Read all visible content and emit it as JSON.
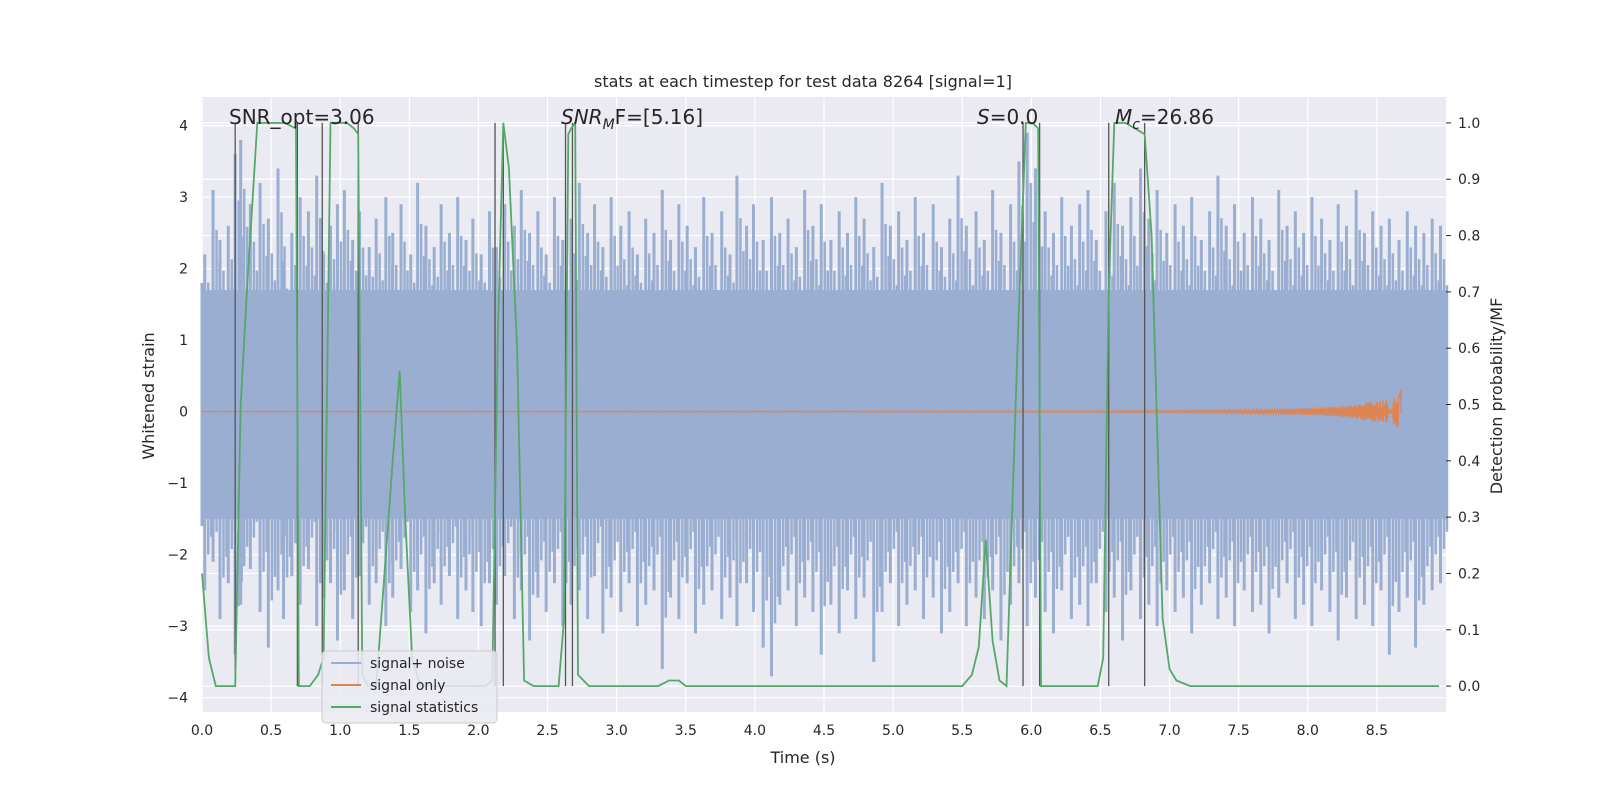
{
  "chart_data": {
    "type": "line",
    "title": "stats at each timestep for test data 8264 [signal=1]",
    "xlabel": "Time (s)",
    "ylabel_left": "Whitened strain",
    "ylabel_right": "Detection probability/MF",
    "xlim": [
      0.0,
      9.0
    ],
    "ylim_left": [
      -4.2,
      4.4
    ],
    "ylim_right": [
      -0.046,
      1.046
    ],
    "x_ticks": [
      0.0,
      0.5,
      1.0,
      1.5,
      2.0,
      2.5,
      3.0,
      3.5,
      4.0,
      4.5,
      5.0,
      5.5,
      6.0,
      6.5,
      7.0,
      7.5,
      8.0,
      8.5
    ],
    "x_tick_labels": [
      "0.0",
      "0.5",
      "1.0",
      "1.5",
      "2.0",
      "2.5",
      "3.0",
      "3.5",
      "4.0",
      "4.5",
      "5.0",
      "5.5",
      "6.0",
      "6.5",
      "7.0",
      "7.5",
      "8.0",
      "8.5"
    ],
    "y_left_ticks": [
      4,
      3,
      2,
      1,
      0,
      -1,
      -2,
      -3,
      -4
    ],
    "y_left_tick_labels": [
      "4",
      "3",
      "2",
      "1",
      "0",
      "−1",
      "−2",
      "−3",
      "−4"
    ],
    "y_right_ticks": [
      1.0,
      0.9,
      0.8,
      0.7,
      0.6,
      0.5,
      0.4,
      0.3,
      0.2,
      0.1,
      0.0
    ],
    "y_right_tick_labels": [
      "1.0",
      "0.9",
      "0.8",
      "0.7",
      "0.6",
      "0.5",
      "0.4",
      "0.3",
      "0.2",
      "0.1",
      "0.0"
    ],
    "annotations": {
      "snr_opt": "SNR_opt=3.06",
      "snr_mf_main": "SNR",
      "snr_mf_sub": "M",
      "snr_mf_rest": "F=[5.16]",
      "s_main": "S",
      "s_rest": "=0.0",
      "mc_main": "M",
      "mc_sub": "c",
      "mc_rest": "=26.86"
    },
    "legend": {
      "placement": "lower-left",
      "entries": [
        "signal+ noise",
        "signal only",
        "signal statistics"
      ]
    },
    "colors": {
      "noise": "#9aaed1",
      "signal": "#dd8452",
      "stats": "#55a868",
      "vlines": "#555555",
      "background": "#eaeaf2",
      "grid": "#ffffff"
    },
    "series": [
      {
        "name": "signal statistics",
        "axis": "right",
        "x": [
          0.0,
          0.05,
          0.1,
          0.2,
          0.24,
          0.28,
          0.32,
          0.4,
          0.5,
          0.6,
          0.68,
          0.7,
          0.73,
          0.78,
          0.84,
          0.88,
          0.93,
          0.97,
          1.05,
          1.1,
          1.13,
          1.16,
          1.2,
          1.26,
          1.32,
          1.38,
          1.43,
          1.47,
          1.52,
          1.58,
          1.65,
          1.75,
          1.85,
          1.95,
          2.05,
          2.1,
          2.14,
          2.18,
          2.22,
          2.28,
          2.33,
          2.4,
          2.5,
          2.58,
          2.62,
          2.65,
          2.67,
          2.7,
          2.72,
          2.8,
          2.9,
          3.0,
          3.1,
          3.2,
          3.3,
          3.38,
          3.45,
          3.5,
          3.6,
          4.0,
          4.5,
          5.0,
          5.5,
          5.57,
          5.62,
          5.67,
          5.72,
          5.77,
          5.82,
          5.9,
          5.96,
          6.01,
          6.05,
          6.07,
          6.1,
          6.2,
          6.4,
          6.48,
          6.52,
          6.56,
          6.6,
          6.68,
          6.75,
          6.82,
          6.87,
          6.95,
          7.0,
          7.05,
          7.15,
          7.3,
          8.0,
          8.5,
          8.95
        ],
        "y": [
          0.2,
          0.05,
          0.0,
          0.0,
          0.0,
          0.5,
          0.68,
          1.0,
          1.0,
          1.0,
          0.99,
          0.0,
          0.0,
          0.0,
          0.02,
          0.05,
          1.0,
          1.0,
          1.0,
          0.99,
          0.98,
          0.02,
          0.0,
          0.0,
          0.2,
          0.4,
          0.56,
          0.3,
          0.05,
          0.0,
          0.0,
          0.0,
          0.0,
          0.0,
          0.0,
          0.01,
          0.62,
          1.0,
          0.92,
          0.6,
          0.01,
          0.0,
          0.0,
          0.0,
          0.12,
          0.98,
          0.99,
          1.0,
          0.02,
          0.0,
          0.0,
          0.0,
          0.0,
          0.0,
          0.0,
          0.01,
          0.01,
          0.0,
          0.0,
          0.0,
          0.0,
          0.0,
          0.0,
          0.02,
          0.07,
          0.26,
          0.08,
          0.01,
          0.0,
          0.6,
          1.0,
          1.0,
          0.99,
          0.0,
          0.0,
          0.0,
          0.0,
          0.0,
          0.05,
          0.7,
          1.0,
          1.0,
          0.99,
          0.98,
          0.8,
          0.12,
          0.03,
          0.01,
          0.0,
          0.0,
          0.0,
          0.0,
          0.0
        ]
      },
      {
        "name": "signal only",
        "axis": "left",
        "x_start": 0.0,
        "x_merger": 8.68,
        "peak_amplitude": 0.68
      },
      {
        "name": "signal+ noise",
        "axis": "left",
        "x": [
          0.0,
          0.02,
          0.08,
          0.13,
          0.19,
          0.24,
          0.28,
          0.35,
          0.42,
          0.48,
          0.55,
          0.59,
          0.65,
          0.71,
          0.77,
          0.83,
          0.88,
          0.93,
          0.98,
          1.03,
          1.09,
          1.14,
          1.21,
          1.26,
          1.33,
          1.38,
          1.44,
          1.51,
          1.56,
          1.62,
          1.68,
          1.73,
          1.79,
          1.85,
          1.91,
          1.96,
          2.02,
          2.08,
          2.13,
          2.19,
          2.26,
          2.31,
          2.37,
          2.43,
          2.49,
          2.55,
          2.61,
          2.67,
          2.73,
          2.79,
          2.84,
          2.9,
          2.96,
          3.03,
          3.09,
          3.15,
          3.21,
          3.27,
          3.33,
          3.39,
          3.45,
          3.51,
          3.57,
          3.63,
          3.69,
          3.76,
          3.82,
          3.87,
          3.94,
          3.99,
          4.06,
          4.12,
          4.18,
          4.24,
          4.3,
          4.36,
          4.42,
          4.48,
          4.55,
          4.61,
          4.67,
          4.73,
          4.79,
          4.86,
          4.92,
          4.98,
          5.04,
          5.1,
          5.16,
          5.22,
          5.29,
          5.35,
          5.41,
          5.47,
          5.53,
          5.6,
          5.66,
          5.72,
          5.78,
          5.85,
          5.91,
          5.97,
          6.03,
          6.1,
          6.16,
          6.22,
          6.29,
          6.35,
          6.41,
          6.47,
          6.54,
          6.6,
          6.66,
          6.72,
          6.79,
          6.85,
          6.91,
          6.98,
          7.04,
          7.1,
          7.16,
          7.23,
          7.29,
          7.35,
          7.41,
          7.47,
          7.54,
          7.6,
          7.66,
          7.72,
          7.79,
          7.85,
          7.91,
          7.97,
          8.03,
          8.1,
          8.16,
          8.22,
          8.28,
          8.35,
          8.41,
          8.47,
          8.53,
          8.59,
          8.66,
          8.72,
          8.78,
          8.84,
          8.9,
          8.96
        ],
        "y_max": [
          1.8,
          2.2,
          3.1,
          2.4,
          2.6,
          3.6,
          3.8,
          2.9,
          3.2,
          2.7,
          3.4,
          2.1,
          2.5,
          3.0,
          2.8,
          3.3,
          2.2,
          2.6,
          2.9,
          3.1,
          2.4,
          2.8,
          2.3,
          2.7,
          3.0,
          2.5,
          2.9,
          2.2,
          3.2,
          2.6,
          2.3,
          2.9,
          2.5,
          3.0,
          2.4,
          2.7,
          2.2,
          2.8,
          2.3,
          2.9,
          2.6,
          3.1,
          2.5,
          2.8,
          2.2,
          3.0,
          2.4,
          2.7,
          3.2,
          2.5,
          2.9,
          2.3,
          3.0,
          2.6,
          2.8,
          2.2,
          2.7,
          2.5,
          3.1,
          2.4,
          2.9,
          2.6,
          2.3,
          3.0,
          2.5,
          2.8,
          2.2,
          3.3,
          2.6,
          2.9,
          2.4,
          3.0,
          2.5,
          2.7,
          2.3,
          3.1,
          2.6,
          2.9,
          2.4,
          2.8,
          2.5,
          3.0,
          2.7,
          2.3,
          3.2,
          2.6,
          2.8,
          2.4,
          3.0,
          2.5,
          2.9,
          2.3,
          2.7,
          3.3,
          2.6,
          2.8,
          2.4,
          3.1,
          2.5,
          2.9,
          3.5,
          3.9,
          3.4,
          2.8,
          2.5,
          3.0,
          2.6,
          2.9,
          3.1,
          2.4,
          2.8,
          3.2,
          2.6,
          3.0,
          3.4,
          2.7,
          3.1,
          2.5,
          2.9,
          2.6,
          3.0,
          2.4,
          2.8,
          3.3,
          2.6,
          2.9,
          2.5,
          3.0,
          2.7,
          2.4,
          3.1,
          2.6,
          2.8,
          2.5,
          3.0,
          2.7,
          2.4,
          2.9,
          2.6,
          3.1,
          2.5,
          2.8,
          2.6,
          2.7,
          2.4,
          2.8,
          2.6,
          2.5,
          2.7,
          2.6
        ],
        "y_min": [
          -1.6,
          -2.5,
          -2.1,
          -2.9,
          -2.4,
          -3.4,
          -2.7,
          -2.2,
          -2.8,
          -3.3,
          -2.5,
          -2.9,
          -2.3,
          -2.7,
          -2.2,
          -3.0,
          -2.6,
          -2.4,
          -3.2,
          -2.5,
          -2.9,
          -2.3,
          -2.7,
          -2.4,
          -3.0,
          -2.6,
          -2.2,
          -2.8,
          -2.5,
          -3.1,
          -2.4,
          -2.7,
          -2.3,
          -2.9,
          -2.5,
          -2.8,
          -3.0,
          -2.4,
          -2.7,
          -2.3,
          -2.9,
          -2.5,
          -3.2,
          -2.6,
          -2.8,
          -2.4,
          -3.0,
          -2.7,
          -2.5,
          -2.9,
          -2.3,
          -3.1,
          -2.6,
          -2.8,
          -2.4,
          -3.0,
          -2.7,
          -2.5,
          -3.6,
          -2.6,
          -2.9,
          -2.4,
          -3.1,
          -2.7,
          -2.5,
          -2.9,
          -2.6,
          -3.0,
          -2.4,
          -2.8,
          -3.3,
          -3.7,
          -2.7,
          -2.5,
          -3.0,
          -2.6,
          -2.8,
          -3.4,
          -2.7,
          -3.1,
          -2.5,
          -2.9,
          -2.6,
          -3.5,
          -2.8,
          -2.4,
          -3.0,
          -2.7,
          -2.5,
          -2.9,
          -2.6,
          -3.1,
          -2.8,
          -2.4,
          -3.0,
          -2.6,
          -2.9,
          -2.5,
          -3.2,
          -2.7,
          -2.4,
          -3.0,
          -2.6,
          -2.8,
          -3.1,
          -2.5,
          -2.9,
          -2.7,
          -3.0,
          -2.4,
          -2.8,
          -2.6,
          -3.2,
          -2.5,
          -2.9,
          -2.7,
          -3.0,
          -2.5,
          -2.8,
          -2.6,
          -3.1,
          -2.7,
          -2.4,
          -2.9,
          -2.6,
          -3.0,
          -2.5,
          -2.8,
          -2.7,
          -3.1,
          -2.6,
          -2.4,
          -2.9,
          -2.7,
          -3.0,
          -2.5,
          -2.8,
          -3.2,
          -2.6,
          -2.9,
          -2.7,
          -3.0,
          -2.5,
          -3.4,
          -2.8,
          -2.6,
          -3.3,
          -2.7,
          -2.5,
          -2.4
        ]
      }
    ],
    "vlines_x": [
      0.24,
      0.69,
      0.87,
      1.13,
      2.12,
      2.18,
      2.63,
      2.68,
      5.94,
      6.06,
      6.56,
      6.82
    ]
  }
}
